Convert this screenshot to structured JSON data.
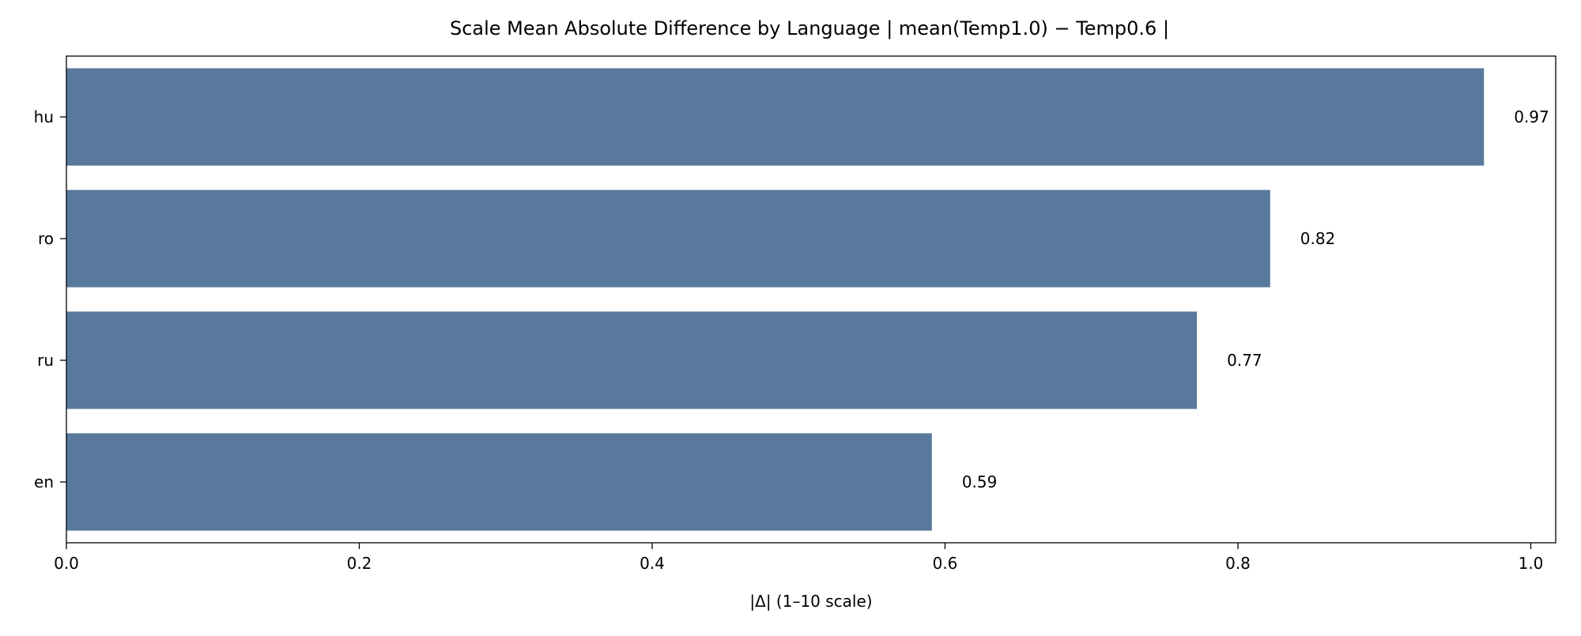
{
  "chart_data": {
    "type": "bar",
    "orientation": "horizontal",
    "title": "Scale Mean Absolute Difference by Language | mean(Temp1.0) − Temp0.6 |",
    "xlabel": "|Δ| (1–10 scale)",
    "ylabel": "",
    "categories": [
      "hu",
      "ro",
      "ru",
      "en"
    ],
    "values": [
      0.968,
      0.822,
      0.772,
      0.591
    ],
    "data_labels": [
      "0.97",
      "0.82",
      "0.77",
      "0.59"
    ],
    "xlim": [
      0.0,
      1.017
    ],
    "xticks": [
      0.0,
      0.2,
      0.4,
      0.6,
      0.8,
      1.0
    ],
    "xtick_labels": [
      "0.0",
      "0.2",
      "0.4",
      "0.6",
      "0.8",
      "1.0"
    ],
    "bar_color": "#58799b",
    "grid": false,
    "legend": "none"
  }
}
